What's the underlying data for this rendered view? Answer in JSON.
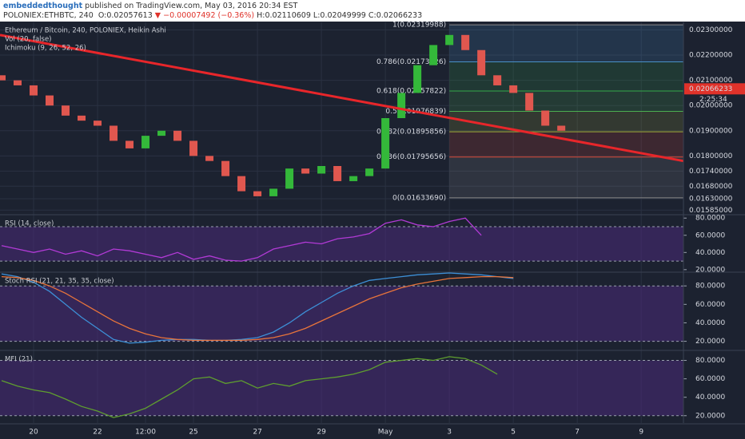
{
  "header": {
    "user": "embeddedthought",
    "published": " published on TradingView.com, May 03, 2016 20:34 EST",
    "symbol": "POLONIEX:ETHBTC, 240",
    "open": "O:0.02057613",
    "direction": "▼",
    "change": "−0.00007492 (−0.36%)",
    "high": "H:0.02110609",
    "low": "L:0.02049999",
    "close": "C:0.02066233"
  },
  "chart_data": [
    {
      "type": "candlestick",
      "title": "Ethereum / Bitcoin, 240, POLONIEX, Heikin Ashi",
      "indicators": [
        "Vol (20, false)",
        "Ichimoku (9, 26, 52, 26)"
      ],
      "x": [
        19,
        19.5,
        20,
        20.5,
        21,
        21.5,
        22,
        22.5,
        23,
        23.5,
        24,
        24.5,
        25,
        25.5,
        26,
        26.5,
        27,
        27.5,
        28,
        28.5,
        29,
        29.5,
        30,
        30.5,
        31,
        31.5,
        32,
        32.5,
        33,
        33.5,
        34,
        34.5,
        35,
        35.5,
        36,
        36.5
      ],
      "open": [
        0.0212,
        0.021,
        0.0208,
        0.0204,
        0.02,
        0.0196,
        0.0194,
        0.0192,
        0.0186,
        0.0183,
        0.0188,
        0.019,
        0.0186,
        0.018,
        0.0178,
        0.0172,
        0.0166,
        0.0164,
        0.0167,
        0.0175,
        0.0173,
        0.0176,
        0.017,
        0.0172,
        0.0175,
        0.0195,
        0.0205,
        0.0216,
        0.0224,
        0.0228,
        0.0222,
        0.0212,
        0.0208,
        0.0205,
        0.0198,
        0.0192
      ],
      "close": [
        0.021,
        0.0208,
        0.0204,
        0.02,
        0.0196,
        0.0194,
        0.0192,
        0.0186,
        0.0183,
        0.0188,
        0.019,
        0.0186,
        0.018,
        0.0178,
        0.0172,
        0.0166,
        0.0164,
        0.0167,
        0.0175,
        0.0173,
        0.0176,
        0.017,
        0.0172,
        0.0175,
        0.0195,
        0.0205,
        0.0216,
        0.0224,
        0.0228,
        0.0222,
        0.0212,
        0.0208,
        0.0205,
        0.0198,
        0.0192,
        0.019
      ],
      "color_up": "#34b83a",
      "color_down": "#e0574f",
      "xlim": [
        18.95,
        40.32
      ],
      "xticks": [
        20,
        22,
        {
          "value": 23.5,
          "label": "12:00"
        },
        25,
        27,
        29,
        {
          "value": 31,
          "label": "May"
        },
        {
          "value": 33,
          "label": "3"
        },
        {
          "value": 35,
          "label": "5"
        },
        {
          "value": 37,
          "label": "7"
        },
        {
          "value": 39,
          "label": "9"
        }
      ],
      "ylim": [
        0.0157,
        0.0233
      ],
      "yticks": [
        {
          "value": 0.023,
          "label": "0.02300000"
        },
        {
          "value": 0.022,
          "label": "0.02200000"
        },
        {
          "value": 0.021,
          "label": "0.02100000"
        },
        {
          "value": 0.02,
          "label": "0.02000000"
        },
        {
          "value": 0.019,
          "label": "0.01900000"
        },
        {
          "value": 0.018,
          "label": "0.01800000"
        },
        {
          "value": 0.0174,
          "label": "0.01740000"
        },
        {
          "value": 0.0168,
          "label": "0.01680000"
        },
        {
          "value": 0.0163,
          "label": "0.01630000"
        },
        {
          "value": 0.01585,
          "label": "0.01585000"
        }
      ],
      "last_price": {
        "value": 0.02066233,
        "label": "0.02066233"
      },
      "countdown": "2:25:34",
      "trendline": {
        "x": [
          18.95,
          40.32
        ],
        "y": [
          0.0228,
          0.0178
        ],
        "color": "#e8262a"
      },
      "fib": {
        "x": [
          33,
          40.32
        ],
        "levels": [
          {
            "value": 0.02319988,
            "label": "1(0.02319988)",
            "color": "#8a8a8a"
          },
          {
            "value": 0.02173126,
            "label": "0.786(0.02173126)",
            "color": "#4a90c8"
          },
          {
            "value": 0.02057822,
            "label": "0.618(0.02057822)",
            "color": "#35a84a"
          },
          {
            "value": 0.01976839,
            "label": "0.5(0.01976839)",
            "color": "#4caf50"
          },
          {
            "value": 0.01895856,
            "label": "0.382(0.01895856)",
            "color": "#a0a83a"
          },
          {
            "value": 0.01795656,
            "label": "0.236(0.01795656)",
            "color": "#d84a3a"
          },
          {
            "value": 0.0163369,
            "label": "0(0.01633690)",
            "color": "#8a8a8a"
          }
        ]
      }
    },
    {
      "type": "line",
      "title": "RSI (14, close)",
      "x": [
        19,
        19.5,
        20,
        20.5,
        21,
        21.5,
        22,
        22.5,
        23,
        23.5,
        24,
        24.5,
        25,
        25.5,
        26,
        26.5,
        27,
        27.5,
        28,
        28.5,
        29,
        29.5,
        30,
        30.5,
        31,
        31.5,
        32,
        32.5,
        33,
        33.5,
        34
      ],
      "series": [
        {
          "color": "#b23ad6",
          "values": [
            48,
            44,
            40,
            44,
            38,
            42,
            36,
            44,
            42,
            38,
            34,
            40,
            32,
            36,
            31,
            30,
            34,
            44,
            48,
            52,
            50,
            56,
            58,
            62,
            74,
            78,
            72,
            70,
            76,
            80,
            60
          ]
        }
      ],
      "bands": [
        70,
        30
      ],
      "ylim": [
        18,
        83
      ],
      "yticks": [
        {
          "value": 80,
          "label": "80.0000"
        },
        {
          "value": 60,
          "label": "60.0000"
        },
        {
          "value": 40,
          "label": "40.0000"
        },
        {
          "value": 20,
          "label": "20.0000"
        }
      ]
    },
    {
      "type": "line",
      "title": "Stoch RSI (21, 21, 35, 35, close)",
      "x": [
        19,
        19.5,
        20,
        20.5,
        21,
        21.5,
        22,
        22.5,
        23,
        23.5,
        24,
        24.5,
        25,
        25.5,
        26,
        26.5,
        27,
        27.5,
        28,
        28.5,
        29,
        29.5,
        30,
        30.5,
        31,
        31.5,
        32,
        32.5,
        33,
        33.5,
        34,
        34.5,
        35
      ],
      "series": [
        {
          "color": "#3d8fd6",
          "values": [
            93,
            90,
            84,
            74,
            60,
            46,
            34,
            22,
            18,
            19,
            21,
            22,
            22,
            21,
            21,
            22,
            24,
            30,
            40,
            52,
            62,
            72,
            80,
            86,
            88,
            90,
            92,
            93,
            94,
            93,
            92,
            90,
            88
          ]
        },
        {
          "color": "#e8743b",
          "values": [
            90,
            89,
            86,
            80,
            72,
            62,
            52,
            42,
            34,
            28,
            24,
            22,
            21,
            21,
            21,
            21,
            22,
            24,
            28,
            34,
            42,
            50,
            58,
            66,
            72,
            78,
            82,
            85,
            88,
            89,
            90,
            90,
            89
          ]
        }
      ],
      "bands": [
        80,
        20
      ],
      "ylim": [
        11,
        94
      ],
      "yticks": [
        {
          "value": 80,
          "label": "80.0000"
        },
        {
          "value": 60,
          "label": "60.0000"
        },
        {
          "value": 40,
          "label": "40.0000"
        },
        {
          "value": 20,
          "label": "20.0000"
        }
      ]
    },
    {
      "type": "line",
      "title": "MFI (21)",
      "x": [
        19,
        19.5,
        20,
        20.5,
        21,
        21.5,
        22,
        22.5,
        23,
        23.5,
        24,
        24.5,
        25,
        25.5,
        26,
        26.5,
        27,
        27.5,
        28,
        28.5,
        29,
        29.5,
        30,
        30.5,
        31,
        31.5,
        32,
        32.5,
        33,
        33.5,
        34,
        34.5
      ],
      "series": [
        {
          "color": "#5f9e2f",
          "values": [
            58,
            52,
            48,
            45,
            38,
            30,
            25,
            18,
            22,
            28,
            38,
            48,
            60,
            62,
            55,
            58,
            50,
            55,
            52,
            58,
            60,
            62,
            65,
            70,
            78,
            80,
            82,
            80,
            84,
            82,
            75,
            65
          ]
        }
      ],
      "bands": [
        80,
        20
      ],
      "ylim": [
        12,
        90
      ],
      "yticks": [
        {
          "value": 80,
          "label": "80.0000"
        },
        {
          "value": 60,
          "label": "60.0000"
        },
        {
          "value": 40,
          "label": "40.0000"
        },
        {
          "value": 20,
          "label": "20.0000"
        }
      ]
    }
  ]
}
